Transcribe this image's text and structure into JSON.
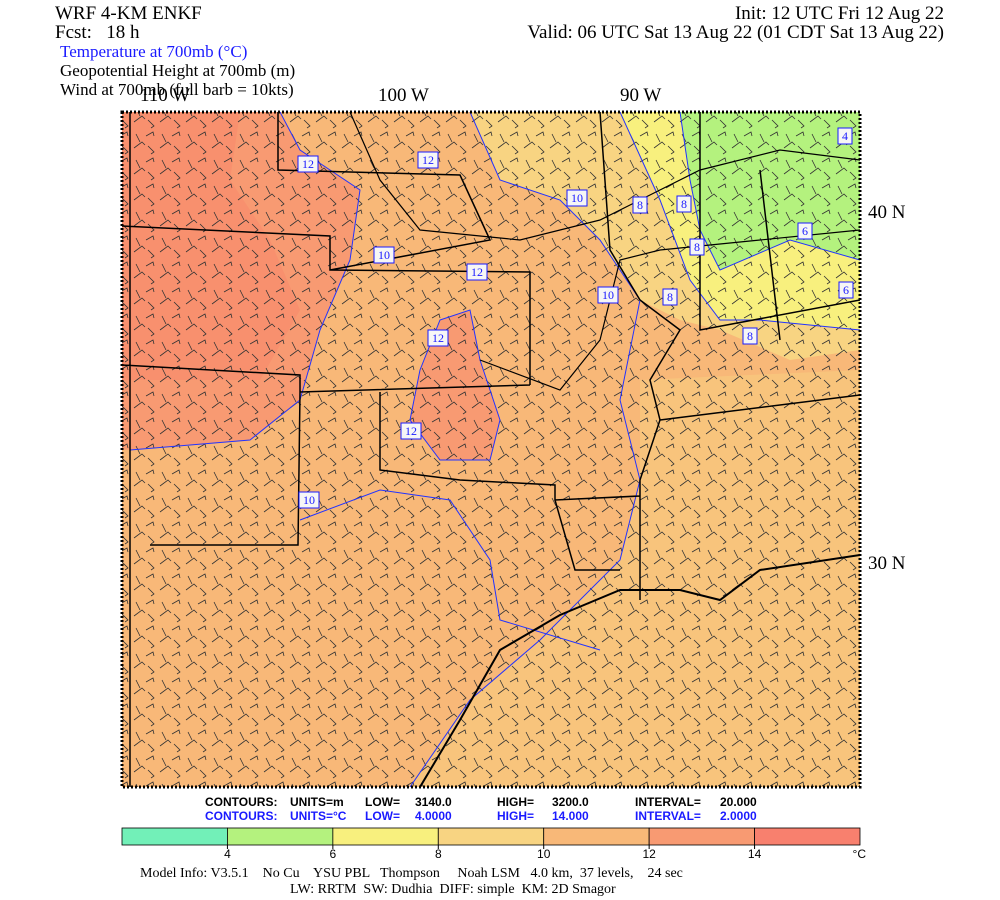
{
  "header": {
    "model": "WRF 4-KM ENKF",
    "forecast": "Fcst:   18 h",
    "init": "Init: 12 UTC Fri 12 Aug 22",
    "valid": "Valid: 06 UTC Sat 13 Aug 22 (01 CDT Sat 13 Aug 22)",
    "fields": [
      "Temperature at 700mb (°C)",
      "Geopotential Height at 700mb (m)",
      "Wind at 700mb (full barb = 10kts)"
    ]
  },
  "map": {
    "lon_labels": [
      "110 W",
      "100 W",
      "90 W"
    ],
    "lat_labels": [
      "40 N",
      "30 N"
    ],
    "contour_labels": [
      12,
      12,
      10,
      8,
      8,
      8,
      6,
      4,
      10,
      12,
      10,
      8,
      6,
      8,
      12,
      12,
      10
    ]
  },
  "contour_info": {
    "height": [
      "CONTOURS:",
      "UNITS=m",
      "LOW=",
      "3140.0",
      "HIGH=",
      "3200.0",
      "INTERVAL=",
      "20.000"
    ],
    "temperature": [
      "CONTOURS:",
      "UNITS=°C",
      "LOW=",
      "4.0000",
      "HIGH=",
      "14.000",
      "INTERVAL=",
      "2.0000"
    ]
  },
  "colorbar": {
    "colors": [
      "#72f0b8",
      "#b4f27e",
      "#f8f07e",
      "#f8d482",
      "#f8b878",
      "#f89a72",
      "#f8806e"
    ],
    "ticks": [
      4,
      6,
      8,
      10,
      12,
      14
    ],
    "unit": "°C"
  },
  "footer": [
    "Model Info: V3.5.1    No Cu    YSU PBL   Thompson     Noah LSM   4.0 km,  37 levels,    24 sec",
    "LW: RRTM  SW: Dudhia  DIFF: simple  KM: 2D Smagor"
  ]
}
